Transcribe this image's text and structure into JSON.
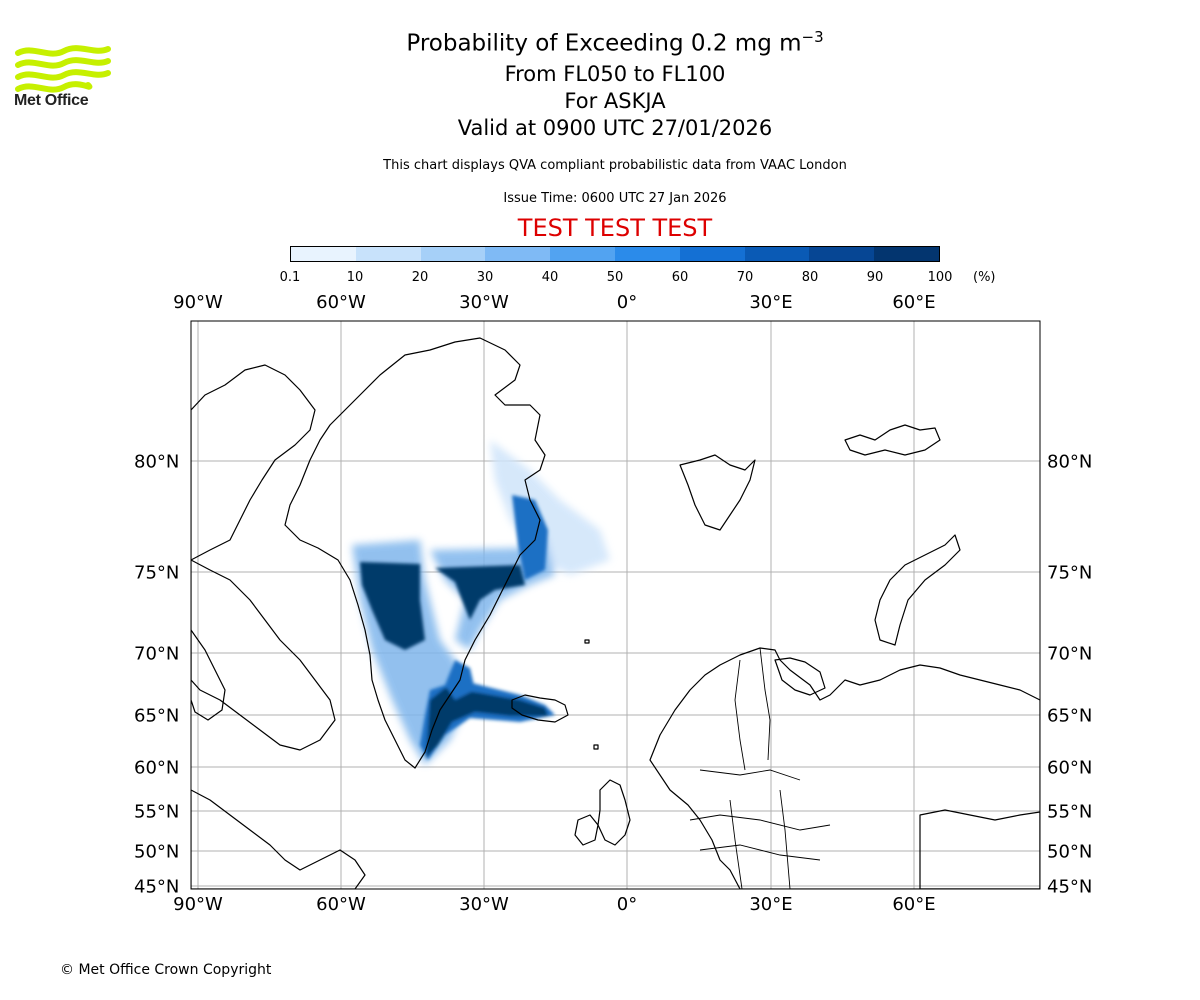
{
  "logo": {
    "text": "Met Office",
    "icon": "met-office-wave-logo",
    "color": "#c6f000"
  },
  "title": {
    "main": "Probability of Exceeding 0.2 mg m",
    "superscript": "−3"
  },
  "subtitle": {
    "levels": "From FL050 to FL100",
    "volcano": "For ASKJA",
    "valid": "Valid at 0900 UTC 27/01/2026"
  },
  "notes": {
    "source": "This chart displays QVA compliant probabilistic data from VAAC London",
    "issue": "Issue Time: 0600 UTC 27 Jan 2026"
  },
  "test_banner": "TEST TEST TEST",
  "colorbar": {
    "ticks": [
      "0.1",
      "10",
      "20",
      "30",
      "40",
      "50",
      "60",
      "70",
      "80",
      "90",
      "100"
    ],
    "unit": "(%)",
    "colors": [
      "#e8f3fe",
      "#c8e2fb",
      "#a6d0f8",
      "#7fbaf5",
      "#52a3f1",
      "#2b8bea",
      "#1470d4",
      "#0a5ab5",
      "#064694",
      "#03356f",
      "#022654"
    ]
  },
  "map": {
    "lon_labels": [
      "90°W",
      "60°W",
      "30°W",
      "0°",
      "30°E",
      "60°E"
    ],
    "lat_labels": [
      "80°N",
      "75°N",
      "70°N",
      "65°N",
      "60°N",
      "55°N",
      "50°N",
      "45°N"
    ],
    "plume_colors": {
      "high": "#023a6b",
      "mid": "#1f6fc4",
      "low": "#7fb6ec",
      "faint": "#cfe4fa"
    }
  },
  "footer": {
    "copyright": "© Met Office Crown Copyright"
  }
}
